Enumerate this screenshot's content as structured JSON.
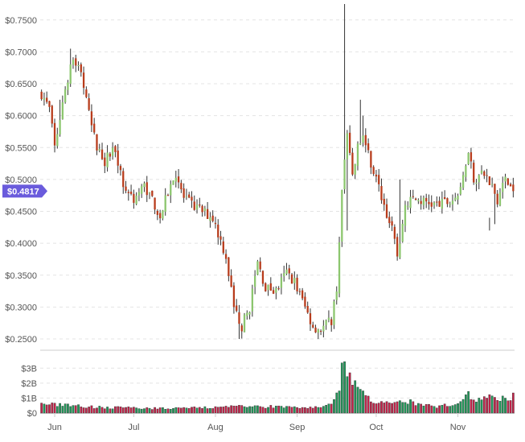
{
  "colors": {
    "up": "#8cc66e",
    "down": "#b83c1c",
    "vol_up": "#1f9a5a",
    "vol_down": "#c8224a",
    "wick": "#333333",
    "grid": "#e4e4e4",
    "axis": "#cccccc",
    "price_tag": "#6a5bdc"
  },
  "chart_data": {
    "type": "candlestick",
    "title": "",
    "current_price_label": "$0.4817",
    "current_price": 0.4817,
    "price_axis": {
      "ylim": [
        0.245,
        0.775
      ],
      "ticks": [
        0.25,
        0.3,
        0.35,
        0.4,
        0.45,
        0.5,
        0.55,
        0.6,
        0.65,
        0.7,
        0.75
      ],
      "tick_labels": [
        "$0.2500",
        "$0.3000",
        "$0.3500",
        "$0.4000",
        "$0.4500",
        "$0.5000",
        "$0.5500",
        "$0.6000",
        "$0.6500",
        "$0.7000",
        "$0.7500"
      ]
    },
    "volume_axis": {
      "ylim": [
        0,
        4.2
      ],
      "ticks": [
        0,
        1,
        2,
        3
      ],
      "tick_labels": [
        "$0",
        "$1B",
        "$2B",
        "$3B"
      ]
    },
    "x_axis": {
      "labels": [
        "Jun",
        "Jul",
        "Aug",
        "Sep",
        "Oct",
        "Nov"
      ],
      "label_day_index": [
        5,
        35,
        66,
        97,
        127,
        158
      ]
    },
    "grid": true,
    "days": 180,
    "anchors_close": [
      [
        0,
        0.635
      ],
      [
        3,
        0.61
      ],
      [
        5,
        0.55
      ],
      [
        8,
        0.62
      ],
      [
        11,
        0.68
      ],
      [
        12,
        0.69
      ],
      [
        15,
        0.67
      ],
      [
        18,
        0.6
      ],
      [
        21,
        0.55
      ],
      [
        24,
        0.53
      ],
      [
        28,
        0.55
      ],
      [
        31,
        0.49
      ],
      [
        35,
        0.47
      ],
      [
        39,
        0.49
      ],
      [
        42,
        0.47
      ],
      [
        45,
        0.44
      ],
      [
        48,
        0.48
      ],
      [
        51,
        0.51
      ],
      [
        54,
        0.47
      ],
      [
        57,
        0.46
      ],
      [
        61,
        0.45
      ],
      [
        65,
        0.44
      ],
      [
        70,
        0.38
      ],
      [
        73,
        0.3
      ],
      [
        76,
        0.27
      ],
      [
        79,
        0.3
      ],
      [
        82,
        0.37
      ],
      [
        85,
        0.33
      ],
      [
        89,
        0.325
      ],
      [
        93,
        0.355
      ],
      [
        96,
        0.34
      ],
      [
        100,
        0.3
      ],
      [
        103,
        0.27
      ],
      [
        106,
        0.265
      ],
      [
        110,
        0.28
      ],
      [
        112,
        0.33
      ],
      [
        114,
        0.48
      ],
      [
        116,
        0.57
      ],
      [
        118,
        0.5
      ],
      [
        120,
        0.55
      ],
      [
        122,
        0.57
      ],
      [
        124,
        0.54
      ],
      [
        127,
        0.5
      ],
      [
        130,
        0.46
      ],
      [
        133,
        0.42
      ],
      [
        135,
        0.38
      ],
      [
        138,
        0.46
      ],
      [
        141,
        0.47
      ],
      [
        145,
        0.465
      ],
      [
        150,
        0.46
      ],
      [
        155,
        0.465
      ],
      [
        159,
        0.48
      ],
      [
        162,
        0.55
      ],
      [
        164,
        0.5
      ],
      [
        167,
        0.51
      ],
      [
        170,
        0.5
      ],
      [
        173,
        0.47
      ],
      [
        176,
        0.5
      ],
      [
        179,
        0.4817
      ]
    ],
    "anchors_volume": [
      [
        0,
        0.6
      ],
      [
        20,
        0.4
      ],
      [
        40,
        0.3
      ],
      [
        60,
        0.35
      ],
      [
        80,
        0.45
      ],
      [
        100,
        0.35
      ],
      [
        110,
        0.5
      ],
      [
        113,
        1.4
      ],
      [
        115,
        4.0
      ],
      [
        117,
        2.4
      ],
      [
        119,
        1.9
      ],
      [
        121,
        1.7
      ],
      [
        123,
        1.2
      ],
      [
        126,
        0.8
      ],
      [
        130,
        0.9
      ],
      [
        135,
        0.7
      ],
      [
        140,
        0.75
      ],
      [
        145,
        0.5
      ],
      [
        150,
        0.45
      ],
      [
        155,
        0.6
      ],
      [
        159,
        0.8
      ],
      [
        162,
        1.3
      ],
      [
        165,
        0.9
      ],
      [
        170,
        1.0
      ],
      [
        175,
        1.05
      ],
      [
        179,
        1.1
      ]
    ],
    "spikes_high": [
      [
        115,
        0.775
      ],
      [
        121,
        0.625
      ],
      [
        122,
        0.6
      ],
      [
        136,
        0.5
      ],
      [
        11,
        0.705
      ],
      [
        7,
        0.625
      ],
      [
        170,
        0.44
      ]
    ],
    "spikes_low": [
      [
        116,
        0.42
      ],
      [
        75,
        0.25
      ],
      [
        170,
        0.42
      ],
      [
        172,
        0.43
      ]
    ]
  }
}
